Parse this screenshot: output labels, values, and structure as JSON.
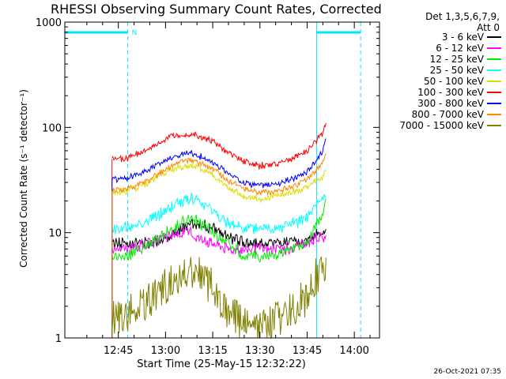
{
  "chart_data": {
    "type": "line",
    "title": "RHESSI Observing Summary Count Rates, Corrected",
    "header": [
      "Det 1,3,5,6,7,9,",
      "Att 0"
    ],
    "ylabel": "Corrected Count Rate (s⁻¹ detector⁻¹)",
    "xlabel": "Start Time (25-May-15 12:32:22)",
    "yscale": "log",
    "ylim": [
      1,
      1000
    ],
    "xlim_minutes": [
      -32,
      68
    ],
    "x_ticks_minutes": [
      -15,
      0,
      15,
      30,
      45,
      60
    ],
    "x_tick_labels": [
      "12:45",
      "13:00",
      "13:15",
      "13:30",
      "13:45",
      "14:00"
    ],
    "y_tick_labels": [
      "1",
      "10",
      "100",
      "1000"
    ],
    "y_tick_values": [
      1,
      10,
      100,
      1000
    ],
    "x_minutes": [
      -17,
      -12,
      -5,
      0,
      5,
      8,
      10,
      15,
      20,
      25,
      30,
      35,
      40,
      45,
      48,
      50,
      51
    ],
    "series": [
      {
        "name": "3 - 6 keV",
        "color": "#000000",
        "values": [
          8,
          8,
          8,
          9,
          11,
          12,
          12,
          11,
          9,
          8,
          8,
          8,
          8,
          8,
          10,
          10,
          10
        ]
      },
      {
        "name": "6 - 12 keV",
        "color": "#ff00ff",
        "values": [
          7,
          7,
          8,
          9,
          10,
          10,
          9,
          8,
          7,
          7,
          7,
          7,
          7,
          8,
          9,
          9,
          10
        ]
      },
      {
        "name": "12 - 25 keV",
        "color": "#00ee00",
        "values": [
          6,
          6,
          8,
          10,
          12,
          14,
          13,
          10,
          8,
          6,
          6,
          6,
          7,
          8,
          12,
          15,
          20
        ]
      },
      {
        "name": "25 - 50 keV",
        "color": "#00ffff",
        "values": [
          11,
          11,
          13,
          16,
          20,
          21,
          20,
          16,
          12,
          11,
          11,
          11,
          12,
          14,
          18,
          21,
          24
        ]
      },
      {
        "name": "50 - 100 keV",
        "color": "#dddd00",
        "values": [
          24,
          25,
          30,
          38,
          42,
          43,
          42,
          35,
          27,
          22,
          21,
          22,
          24,
          27,
          32,
          35,
          38
        ]
      },
      {
        "name": "100 - 300 keV",
        "color": "#ff0000",
        "values": [
          50,
          51,
          63,
          78,
          86,
          87,
          85,
          74,
          57,
          48,
          43,
          45,
          50,
          60,
          75,
          90,
          110
        ]
      },
      {
        "name": "300 - 800 keV",
        "color": "#0000ff",
        "values": [
          32,
          33,
          40,
          48,
          55,
          57,
          55,
          47,
          36,
          30,
          28,
          29,
          32,
          38,
          50,
          60,
          75
        ]
      },
      {
        "name": "800 - 7000 keV",
        "color": "#ff8800",
        "values": [
          25,
          26,
          32,
          40,
          47,
          49,
          47,
          40,
          31,
          26,
          24,
          25,
          27,
          32,
          40,
          48,
          58
        ]
      },
      {
        "name": "7000 - 15000 keV",
        "color": "#808000",
        "values": [
          1.5,
          1.7,
          2.2,
          3.0,
          4.2,
          4.5,
          4.3,
          3.0,
          1.8,
          1.3,
          1.2,
          1.5,
          1.8,
          2.5,
          3.8,
          4.5,
          5.0
        ]
      }
    ],
    "night_intervals_minutes": [
      [
        -32,
        -12
      ],
      [
        48,
        62
      ]
    ],
    "night_marker_label": "N",
    "timestamp": "26-Oct-2021 07:35"
  }
}
